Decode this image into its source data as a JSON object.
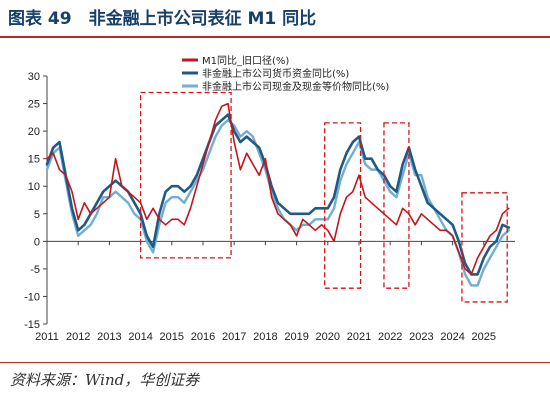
{
  "title": "图表 49　非金融上市公司表征 M1 同比",
  "source": "资料来源：Wind，华创证券",
  "colors": {
    "accent": "#b7282e",
    "series": [
      "#c3161c",
      "#1f5a84",
      "#72aed2"
    ],
    "highlight": "#d7141a"
  },
  "chart_data": {
    "type": "line",
    "xlim": [
      2011,
      2026
    ],
    "ylim": [
      -15,
      30
    ],
    "x_ticks": [
      "2011",
      "2012",
      "2013",
      "2014",
      "2015",
      "2016",
      "2017",
      "2018",
      "2019",
      "2020",
      "2021",
      "2022",
      "2023",
      "2024",
      "2025"
    ],
    "y_ticks": [
      "30",
      "25",
      "20",
      "15",
      "10",
      "5",
      "0",
      "-5",
      "-10",
      "-15"
    ],
    "legend_position": "top-center",
    "grid": false,
    "series": [
      {
        "name": "M1同比_旧口径(%)",
        "x": [
          2011.0,
          2011.2,
          2011.4,
          2011.6,
          2011.8,
          2012.0,
          2012.2,
          2012.4,
          2012.6,
          2012.8,
          2013.0,
          2013.2,
          2013.4,
          2013.6,
          2013.8,
          2014.0,
          2014.2,
          2014.4,
          2014.6,
          2014.8,
          2015.0,
          2015.2,
          2015.4,
          2015.6,
          2015.8,
          2016.0,
          2016.2,
          2016.4,
          2016.6,
          2016.8,
          2017.0,
          2017.2,
          2017.4,
          2017.6,
          2017.8,
          2018.0,
          2018.2,
          2018.4,
          2018.6,
          2018.8,
          2019.0,
          2019.2,
          2019.4,
          2019.6,
          2019.8,
          2020.0,
          2020.2,
          2020.4,
          2020.6,
          2020.8,
          2021.0,
          2021.2,
          2021.4,
          2021.6,
          2021.8,
          2022.0,
          2022.2,
          2022.4,
          2022.6,
          2022.8,
          2023.0,
          2023.2,
          2023.4,
          2023.6,
          2023.8,
          2024.0,
          2024.2,
          2024.4,
          2024.6,
          2024.8,
          2025.0,
          2025.2,
          2025.4,
          2025.6,
          2025.8
        ],
        "values": [
          15,
          16,
          13,
          12,
          9,
          4,
          7,
          5,
          6,
          7,
          8,
          15,
          10,
          9,
          8,
          7,
          4,
          6,
          4,
          3,
          4,
          4,
          3,
          6,
          10,
          14,
          18,
          22,
          24.5,
          25,
          18,
          13,
          16,
          14,
          12,
          15,
          8,
          5,
          4,
          3,
          1,
          4,
          3,
          2,
          3,
          2,
          0,
          5,
          8,
          9,
          12,
          8,
          7,
          6,
          5,
          4,
          3,
          6,
          5,
          3,
          5,
          4,
          3,
          2,
          2,
          1,
          -2,
          -5,
          -6,
          -3,
          -1,
          1,
          2,
          5,
          6
        ]
      },
      {
        "name": "非金融上市公司货币资金同比(%)",
        "x": [
          2011.0,
          2011.2,
          2011.4,
          2011.6,
          2011.8,
          2012.0,
          2012.2,
          2012.4,
          2012.6,
          2012.8,
          2013.0,
          2013.2,
          2013.4,
          2013.6,
          2013.8,
          2014.0,
          2014.2,
          2014.4,
          2014.6,
          2014.8,
          2015.0,
          2015.2,
          2015.4,
          2015.6,
          2015.8,
          2016.0,
          2016.2,
          2016.4,
          2016.6,
          2016.8,
          2017.0,
          2017.2,
          2017.4,
          2017.6,
          2017.8,
          2018.0,
          2018.2,
          2018.4,
          2018.6,
          2018.8,
          2019.0,
          2019.2,
          2019.4,
          2019.6,
          2019.8,
          2020.0,
          2020.2,
          2020.4,
          2020.6,
          2020.8,
          2021.0,
          2021.2,
          2021.4,
          2021.6,
          2021.8,
          2022.0,
          2022.2,
          2022.4,
          2022.6,
          2022.8,
          2023.0,
          2023.2,
          2023.4,
          2023.6,
          2023.8,
          2024.0,
          2024.2,
          2024.4,
          2024.6,
          2024.8,
          2025.0,
          2025.2,
          2025.4,
          2025.6,
          2025.8
        ],
        "values": [
          14,
          17,
          18,
          12,
          6,
          2,
          3,
          5,
          7,
          9,
          10,
          11,
          10,
          9,
          7,
          5,
          1,
          -1,
          5,
          9,
          10,
          10,
          9,
          10,
          12,
          15,
          18,
          21,
          22,
          23,
          20,
          18,
          19,
          18,
          17,
          14,
          10,
          7,
          6,
          5,
          5,
          5,
          5,
          6,
          6,
          6,
          8,
          13,
          16,
          18,
          19,
          15,
          15,
          13,
          12,
          10,
          9,
          14,
          17,
          13,
          10,
          7,
          6,
          5,
          4,
          3,
          0,
          -4,
          -6,
          -6,
          -3,
          -1,
          0,
          3,
          2.5
        ]
      },
      {
        "name": "非金融上市公司现金及现金等价物同比(%)",
        "x": [
          2011.0,
          2011.2,
          2011.4,
          2011.6,
          2011.8,
          2012.0,
          2012.2,
          2012.4,
          2012.6,
          2012.8,
          2013.0,
          2013.2,
          2013.4,
          2013.6,
          2013.8,
          2014.0,
          2014.2,
          2014.4,
          2014.6,
          2014.8,
          2015.0,
          2015.2,
          2015.4,
          2015.6,
          2015.8,
          2016.0,
          2016.2,
          2016.4,
          2016.6,
          2016.8,
          2017.0,
          2017.2,
          2017.4,
          2017.6,
          2017.8,
          2018.0,
          2018.2,
          2018.4,
          2018.6,
          2018.8,
          2019.0,
          2019.2,
          2019.4,
          2019.6,
          2019.8,
          2020.0,
          2020.2,
          2020.4,
          2020.6,
          2020.8,
          2021.0,
          2021.2,
          2021.4,
          2021.6,
          2021.8,
          2022.0,
          2022.2,
          2022.4,
          2022.6,
          2022.8,
          2023.0,
          2023.2,
          2023.4,
          2023.6,
          2023.8,
          2024.0,
          2024.2,
          2024.4,
          2024.6,
          2024.8,
          2025.0,
          2025.2,
          2025.4,
          2025.6,
          2025.8
        ],
        "values": [
          13,
          16,
          17,
          11,
          5,
          1,
          2,
          3,
          5,
          8,
          8,
          9,
          8,
          7,
          5,
          4,
          0,
          -2,
          3,
          7,
          8,
          8,
          7,
          9,
          11,
          13,
          16,
          19,
          21,
          22,
          21,
          19,
          20,
          19,
          16,
          13,
          9,
          6,
          4,
          3,
          2,
          3,
          3,
          4,
          4,
          4,
          6,
          11,
          14,
          16,
          18,
          14,
          13,
          13,
          11,
          9,
          8,
          12,
          16,
          12,
          12,
          8,
          6,
          4,
          2,
          1,
          -2,
          -6,
          -8,
          -8,
          -5,
          -3,
          -1,
          1,
          2
        ]
      }
    ],
    "highlight_periods": [
      {
        "x0": 2014.0,
        "x1": 2016.9,
        "y0": -3,
        "y1": 27
      },
      {
        "x0": 2019.9,
        "x1": 2021.05,
        "y0": -8.5,
        "y1": 21.5
      },
      {
        "x0": 2021.8,
        "x1": 2022.6,
        "y0": -8.5,
        "y1": 21.5
      },
      {
        "x0": 2024.3,
        "x1": 2025.75,
        "y0": -11,
        "y1": 8.8
      }
    ]
  }
}
